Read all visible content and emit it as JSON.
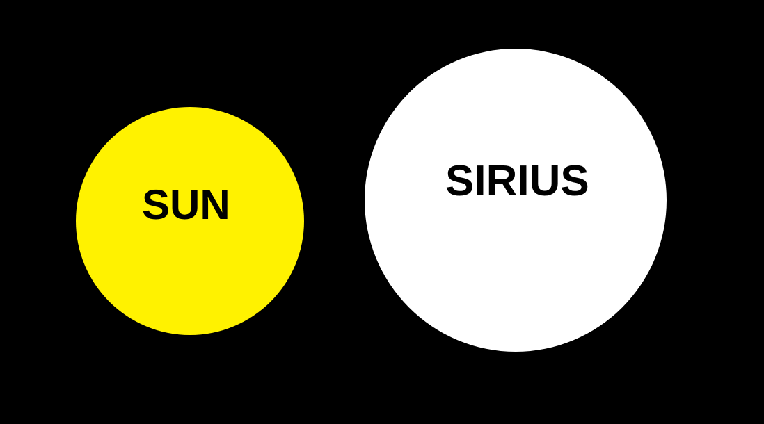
{
  "background_color": "#000000",
  "stars": [
    {
      "label": "SUN",
      "color": "#FFF200"
    },
    {
      "label": "SIRIUS",
      "color": "#FFFFFF"
    }
  ]
}
